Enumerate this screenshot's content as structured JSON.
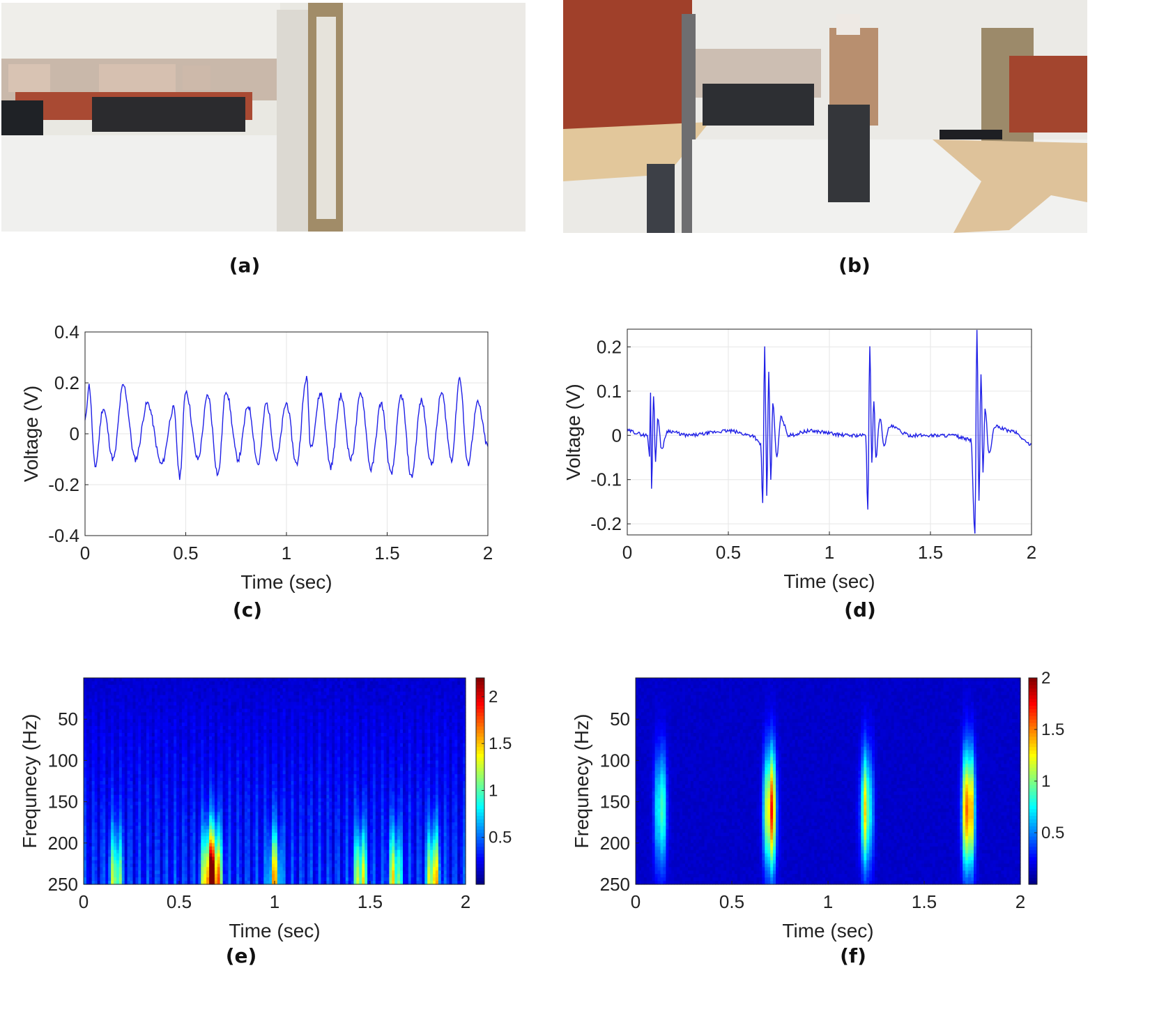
{
  "panels": {
    "a": {
      "label": "(a)"
    },
    "b": {
      "label": "(b)"
    },
    "c": {
      "label": "(c)"
    },
    "d": {
      "label": "(d)"
    },
    "e": {
      "label": "(e)"
    },
    "f": {
      "label": "(f)"
    }
  },
  "colors": {
    "signal": "#1f1fe6",
    "grid": "#e6e6e6",
    "axis": "#222222"
  },
  "chart_data": [
    {
      "id": "c",
      "type": "line",
      "xlabel": "Time (sec)",
      "ylabel": "Voltage (V)",
      "xlim": [
        0,
        2
      ],
      "ylim": [
        -0.4,
        0.4
      ],
      "xticks": [
        0,
        0.5,
        1,
        1.5,
        2
      ],
      "xtick_labels": [
        "0",
        "0.5",
        "1",
        "1.5",
        "2"
      ],
      "yticks": [
        -0.4,
        -0.2,
        0,
        0.2,
        0.4
      ],
      "ytick_labels": [
        "-0.4",
        "-0.2",
        "0",
        "0.2",
        "0.4"
      ],
      "grid": true,
      "series": [
        {
          "color": "#1f1fe6",
          "x": [
            0,
            0.02,
            0.05,
            0.09,
            0.14,
            0.19,
            0.25,
            0.31,
            0.38,
            0.44,
            0.47,
            0.5,
            0.56,
            0.61,
            0.66,
            0.7,
            0.76,
            0.81,
            0.86,
            0.9,
            0.95,
            1.0,
            1.05,
            1.1,
            1.12,
            1.17,
            1.22,
            1.27,
            1.32,
            1.37,
            1.42,
            1.47,
            1.52,
            1.57,
            1.62,
            1.67,
            1.72,
            1.77,
            1.82,
            1.86,
            1.9,
            1.95,
            2.0
          ],
          "y": [
            0.05,
            0.19,
            -0.13,
            0.1,
            -0.1,
            0.19,
            -0.1,
            0.12,
            -0.12,
            0.1,
            -0.17,
            0.17,
            -0.1,
            0.15,
            -0.16,
            0.17,
            -0.1,
            0.11,
            -0.12,
            0.12,
            -0.1,
            0.12,
            -0.12,
            0.22,
            -0.05,
            0.16,
            -0.13,
            0.15,
            -0.1,
            0.16,
            -0.14,
            0.12,
            -0.16,
            0.15,
            -0.17,
            0.13,
            -0.12,
            0.16,
            -0.1,
            0.22,
            -0.12,
            0.12,
            -0.05
          ]
        }
      ]
    },
    {
      "id": "d",
      "type": "line",
      "xlabel": "Time (sec)",
      "ylabel": "Voltage (V)",
      "xlim": [
        0,
        2
      ],
      "ylim": [
        -0.225,
        0.24
      ],
      "xticks": [
        0,
        0.5,
        1,
        1.5,
        2
      ],
      "xtick_labels": [
        "0",
        "0.5",
        "1",
        "1.5",
        "2"
      ],
      "yticks": [
        -0.2,
        -0.1,
        0,
        0.1,
        0.2
      ],
      "ytick_labels": [
        "-0.2",
        "-0.1",
        "0",
        "0.1",
        "0.2"
      ],
      "grid": true,
      "series": [
        {
          "color": "#1f1fe6",
          "x": [
            0,
            0.1,
            0.11,
            0.115,
            0.12,
            0.13,
            0.14,
            0.15,
            0.17,
            0.2,
            0.3,
            0.5,
            0.62,
            0.66,
            0.67,
            0.68,
            0.69,
            0.7,
            0.71,
            0.72,
            0.74,
            0.76,
            0.8,
            0.9,
            1.1,
            1.18,
            1.19,
            1.2,
            1.21,
            1.22,
            1.23,
            1.25,
            1.27,
            1.3,
            1.4,
            1.6,
            1.7,
            1.72,
            1.73,
            1.74,
            1.75,
            1.76,
            1.77,
            1.79,
            1.82,
            1.9,
            2.0
          ],
          "y": [
            0.01,
            0.0,
            -0.05,
            0.1,
            -0.12,
            0.09,
            -0.06,
            0.04,
            -0.03,
            0.01,
            0.0,
            0.01,
            0.0,
            -0.02,
            -0.15,
            0.2,
            -0.14,
            0.14,
            -0.1,
            0.07,
            -0.05,
            0.04,
            0.0,
            0.01,
            0.0,
            0.0,
            -0.17,
            0.2,
            -0.06,
            0.08,
            -0.05,
            0.04,
            -0.02,
            0.02,
            0.0,
            0.0,
            -0.01,
            -0.22,
            0.24,
            -0.15,
            0.14,
            -0.08,
            0.06,
            -0.04,
            0.02,
            0.01,
            -0.02
          ]
        }
      ]
    },
    {
      "id": "e",
      "type": "heatmap",
      "xlabel": "Time (sec)",
      "ylabel": "Frequnecy (Hz)",
      "xlim": [
        0,
        2
      ],
      "ylim": [
        0,
        250
      ],
      "y_reversed": true,
      "xticks": [
        0,
        0.5,
        1,
        1.5,
        2
      ],
      "xtick_labels": [
        "0",
        "0.5",
        "1",
        "1.5",
        "2"
      ],
      "yticks": [
        50,
        100,
        150,
        200,
        250
      ],
      "ytick_labels": [
        "50",
        "100",
        "150",
        "200",
        "250"
      ],
      "colorbar": {
        "min": 0,
        "max": 2.2,
        "ticks": [
          0.5,
          1,
          1.5,
          2
        ],
        "tick_labels": [
          "0.5",
          "1",
          "1.5",
          "2"
        ],
        "colormap": "jet"
      },
      "events": [
        {
          "t": 0.17,
          "intensity": 1.2
        },
        {
          "t": 0.65,
          "intensity": 1.8
        },
        {
          "t": 0.69,
          "intensity": 2.1
        },
        {
          "t": 1.0,
          "intensity": 1.3
        },
        {
          "t": 1.45,
          "intensity": 1.4
        },
        {
          "t": 1.63,
          "intensity": 1.3
        },
        {
          "t": 1.83,
          "intensity": 1.6
        }
      ]
    },
    {
      "id": "f",
      "type": "heatmap",
      "xlabel": "Time (sec)",
      "ylabel": "Frequnecy (Hz)",
      "xlim": [
        0,
        2
      ],
      "ylim": [
        0,
        250
      ],
      "y_reversed": true,
      "xticks": [
        0,
        0.5,
        1,
        1.5,
        2
      ],
      "xtick_labels": [
        "0",
        "0.5",
        "1",
        "1.5",
        "2"
      ],
      "yticks": [
        50,
        100,
        150,
        200,
        250
      ],
      "ytick_labels": [
        "50",
        "100",
        "150",
        "200",
        "250"
      ],
      "colorbar": {
        "min": 0,
        "max": 2.0,
        "ticks": [
          0.5,
          1,
          1.5,
          2
        ],
        "tick_labels": [
          "0.5",
          "1",
          "1.5",
          "2"
        ],
        "colormap": "jet"
      },
      "events": [
        {
          "t": 0.13,
          "intensity": 1.0
        },
        {
          "t": 0.7,
          "intensity": 1.9
        },
        {
          "t": 1.2,
          "intensity": 1.3
        },
        {
          "t": 1.73,
          "intensity": 2.0
        }
      ]
    }
  ]
}
